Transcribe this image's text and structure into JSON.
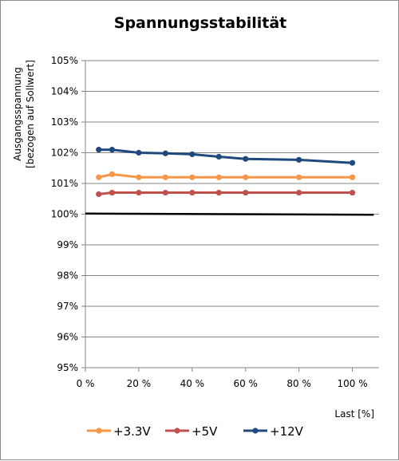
{
  "chart_data": {
    "type": "line",
    "title": "Spannungsstabilität",
    "xlabel": "Last [%]",
    "ylabel_lines": [
      "Ausgangsspannung",
      "[bezogen auf Sollwert]"
    ],
    "xlim": [
      0,
      110
    ],
    "ylim": [
      95,
      105
    ],
    "x_ticks": [
      {
        "value": 0,
        "label": "0 %"
      },
      {
        "value": 20,
        "label": "20 %"
      },
      {
        "value": 40,
        "label": "40 %"
      },
      {
        "value": 60,
        "label": "60 %"
      },
      {
        "value": 80,
        "label": "80 %"
      },
      {
        "value": 100,
        "label": "100 %"
      }
    ],
    "y_ticks": [
      {
        "value": 105,
        "label": "105%"
      },
      {
        "value": 104,
        "label": "104%"
      },
      {
        "value": 103,
        "label": "103%"
      },
      {
        "value": 102,
        "label": "102%"
      },
      {
        "value": 101,
        "label": "101%"
      },
      {
        "value": 100,
        "label": "100%"
      },
      {
        "value": 99,
        "label": "99%"
      },
      {
        "value": 98,
        "label": "98%"
      },
      {
        "value": 97,
        "label": "97%"
      },
      {
        "value": 96,
        "label": "96%"
      },
      {
        "value": 95,
        "label": "95%"
      }
    ],
    "grid": "horizontal",
    "legend_position": "bottom",
    "x": [
      5,
      10,
      20,
      30,
      40,
      50,
      60,
      80,
      100
    ],
    "series": [
      {
        "name": "+3.3V",
        "color": "#f79646",
        "values": [
          101.2,
          101.3,
          101.2,
          101.2,
          101.2,
          101.2,
          101.2,
          101.2,
          101.2
        ]
      },
      {
        "name": "+5V",
        "color": "#c0504d",
        "values": [
          100.65,
          100.7,
          100.7,
          100.7,
          100.7,
          100.7,
          100.7,
          100.7,
          100.7
        ]
      },
      {
        "name": "+12V",
        "color": "#1f497d",
        "values": [
          102.1,
          102.1,
          102.0,
          101.98,
          101.95,
          101.87,
          101.8,
          101.77,
          101.67
        ]
      }
    ],
    "reference_line": {
      "x": [
        0,
        108
      ],
      "values": [
        100.02,
        99.98
      ],
      "color": "#000000"
    }
  }
}
